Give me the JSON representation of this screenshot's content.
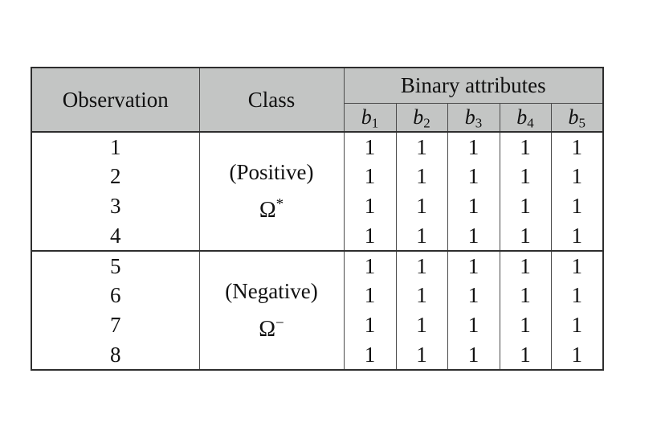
{
  "colors": {
    "header_bg": "#c3c5c4",
    "border_dark": "#2e2e2e",
    "border_light": "#4b4b4b",
    "text": "#111111",
    "page_bg": "#ffffff"
  },
  "table": {
    "header": {
      "observation": "Observation",
      "class": "Class",
      "binary_attributes": "Binary attributes",
      "attributes": [
        {
          "base": "b",
          "sub": "1"
        },
        {
          "base": "b",
          "sub": "2"
        },
        {
          "base": "b",
          "sub": "3"
        },
        {
          "base": "b",
          "sub": "4"
        },
        {
          "base": "b",
          "sub": "5"
        }
      ]
    },
    "groups": [
      {
        "class_label": "(Positive)",
        "class_symbol": "Ω",
        "class_superscript": "*",
        "rows": [
          {
            "observation": "1",
            "values": [
              "1",
              "1",
              "1",
              "1",
              "1"
            ]
          },
          {
            "observation": "2",
            "values": [
              "1",
              "1",
              "1",
              "1",
              "1"
            ]
          },
          {
            "observation": "3",
            "values": [
              "1",
              "1",
              "1",
              "1",
              "1"
            ]
          },
          {
            "observation": "4",
            "values": [
              "1",
              "1",
              "1",
              "1",
              "1"
            ]
          }
        ]
      },
      {
        "class_label": "(Negative)",
        "class_symbol": "Ω",
        "class_superscript": "−",
        "rows": [
          {
            "observation": "5",
            "values": [
              "1",
              "1",
              "1",
              "1",
              "1"
            ]
          },
          {
            "observation": "6",
            "values": [
              "1",
              "1",
              "1",
              "1",
              "1"
            ]
          },
          {
            "observation": "7",
            "values": [
              "1",
              "1",
              "1",
              "1",
              "1"
            ]
          },
          {
            "observation": "8",
            "values": [
              "1",
              "1",
              "1",
              "1",
              "1"
            ]
          }
        ]
      }
    ]
  }
}
